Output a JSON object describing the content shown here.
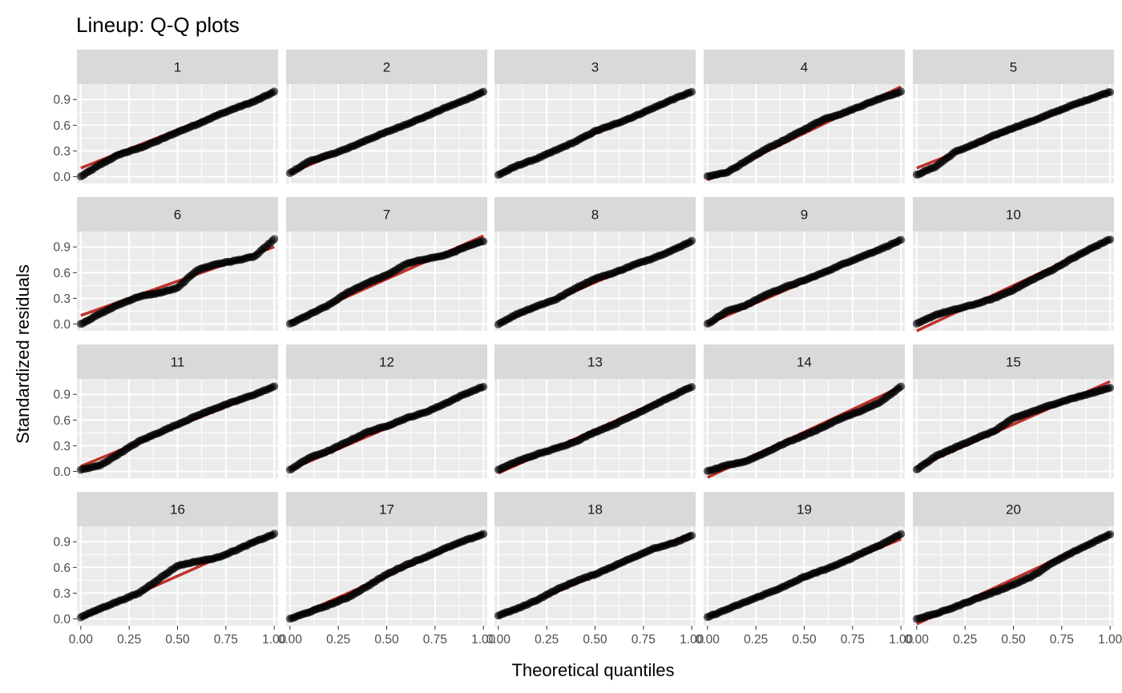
{
  "chart_data": {
    "type": "scatter",
    "title": "Lineup: Q-Q plots",
    "xlabel": "Theoretical quantiles",
    "ylabel": "Standardized residuals",
    "xlim": [
      -0.02,
      1.02
    ],
    "ylim": [
      -0.08,
      1.08
    ],
    "xticks": [
      0.0,
      0.25,
      0.5,
      0.75,
      1.0
    ],
    "xtick_labels": [
      "0.00",
      "0.25",
      "0.50",
      "0.75",
      "1.00"
    ],
    "yticks": [
      0.0,
      0.3,
      0.6,
      0.9
    ],
    "ytick_labels": [
      "0.0",
      "0.3",
      "0.6",
      "0.9"
    ],
    "facet_rows": 4,
    "facet_cols": 5,
    "grid": true,
    "colors": {
      "panel_background": "#ebebeb",
      "strip_background": "#d9d9d9",
      "grid_line": "#ffffff",
      "reference_line": "#c0312b",
      "points": "#000000"
    },
    "points_per_panel": 100,
    "panels": [
      {
        "label": "1",
        "x": [
          0.0,
          0.1,
          0.2,
          0.3,
          0.4,
          0.5,
          0.6,
          0.7,
          0.8,
          0.9,
          1.0
        ],
        "y": [
          0.0,
          0.14,
          0.26,
          0.33,
          0.42,
          0.52,
          0.61,
          0.71,
          0.8,
          0.88,
          0.99
        ],
        "ref": [
          0.1,
          0.99
        ]
      },
      {
        "label": "2",
        "x": [
          0.0,
          0.1,
          0.2,
          0.3,
          0.4,
          0.5,
          0.6,
          0.7,
          0.8,
          0.9,
          1.0
        ],
        "y": [
          0.04,
          0.18,
          0.25,
          0.33,
          0.43,
          0.52,
          0.61,
          0.7,
          0.8,
          0.89,
          0.99
        ],
        "ref": [
          0.04,
          0.99
        ]
      },
      {
        "label": "3",
        "x": [
          0.0,
          0.1,
          0.2,
          0.3,
          0.4,
          0.5,
          0.6,
          0.7,
          0.8,
          0.9,
          1.0
        ],
        "y": [
          0.02,
          0.13,
          0.21,
          0.31,
          0.41,
          0.53,
          0.61,
          0.7,
          0.8,
          0.9,
          0.99
        ],
        "ref": [
          0.02,
          0.99
        ]
      },
      {
        "label": "4",
        "x": [
          0.0,
          0.1,
          0.2,
          0.3,
          0.4,
          0.5,
          0.6,
          0.7,
          0.8,
          0.9,
          1.0
        ],
        "y": [
          0.0,
          0.05,
          0.18,
          0.32,
          0.43,
          0.55,
          0.67,
          0.74,
          0.83,
          0.92,
          0.99
        ],
        "ref": [
          -0.04,
          1.05
        ]
      },
      {
        "label": "5",
        "x": [
          0.0,
          0.1,
          0.2,
          0.3,
          0.4,
          0.5,
          0.6,
          0.7,
          0.8,
          0.9,
          1.0
        ],
        "y": [
          0.02,
          0.12,
          0.29,
          0.38,
          0.48,
          0.57,
          0.65,
          0.74,
          0.83,
          0.91,
          0.99
        ],
        "ref": [
          0.1,
          0.99
        ]
      },
      {
        "label": "6",
        "x": [
          0.0,
          0.1,
          0.2,
          0.3,
          0.4,
          0.5,
          0.6,
          0.7,
          0.8,
          0.9,
          1.0
        ],
        "y": [
          0.0,
          0.12,
          0.23,
          0.32,
          0.36,
          0.42,
          0.63,
          0.7,
          0.74,
          0.79,
          0.99
        ],
        "ref": [
          0.1,
          0.9
        ]
      },
      {
        "label": "7",
        "x": [
          0.0,
          0.1,
          0.2,
          0.3,
          0.4,
          0.5,
          0.6,
          0.7,
          0.8,
          0.9,
          1.0
        ],
        "y": [
          0.0,
          0.11,
          0.22,
          0.37,
          0.48,
          0.57,
          0.7,
          0.76,
          0.8,
          0.89,
          0.97
        ],
        "ref": [
          0.02,
          1.03
        ]
      },
      {
        "label": "8",
        "x": [
          0.0,
          0.1,
          0.2,
          0.3,
          0.4,
          0.5,
          0.6,
          0.7,
          0.8,
          0.9,
          1.0
        ],
        "y": [
          0.0,
          0.12,
          0.21,
          0.29,
          0.42,
          0.53,
          0.6,
          0.69,
          0.77,
          0.86,
          0.97
        ],
        "ref": [
          0.0,
          0.97
        ]
      },
      {
        "label": "9",
        "x": [
          0.0,
          0.1,
          0.2,
          0.3,
          0.4,
          0.5,
          0.6,
          0.7,
          0.8,
          0.9,
          1.0
        ],
        "y": [
          0.0,
          0.15,
          0.22,
          0.34,
          0.43,
          0.51,
          0.6,
          0.7,
          0.79,
          0.88,
          0.98
        ],
        "ref": [
          0.0,
          0.98
        ]
      },
      {
        "label": "10",
        "x": [
          0.0,
          0.1,
          0.2,
          0.3,
          0.4,
          0.5,
          0.6,
          0.7,
          0.8,
          0.9,
          1.0
        ],
        "y": [
          0.0,
          0.11,
          0.17,
          0.23,
          0.3,
          0.4,
          0.52,
          0.63,
          0.76,
          0.88,
          0.99
        ],
        "ref": [
          -0.08,
          0.98
        ]
      },
      {
        "label": "11",
        "x": [
          0.0,
          0.1,
          0.2,
          0.3,
          0.4,
          0.5,
          0.6,
          0.7,
          0.8,
          0.9,
          1.0
        ],
        "y": [
          0.02,
          0.07,
          0.21,
          0.35,
          0.45,
          0.55,
          0.65,
          0.74,
          0.82,
          0.9,
          0.99
        ],
        "ref": [
          0.06,
          0.99
        ]
      },
      {
        "label": "12",
        "x": [
          0.0,
          0.1,
          0.2,
          0.3,
          0.4,
          0.5,
          0.6,
          0.7,
          0.8,
          0.9,
          1.0
        ],
        "y": [
          0.02,
          0.16,
          0.24,
          0.35,
          0.46,
          0.53,
          0.62,
          0.69,
          0.79,
          0.9,
          0.99
        ],
        "ref": [
          0.02,
          0.99
        ]
      },
      {
        "label": "13",
        "x": [
          0.0,
          0.1,
          0.2,
          0.3,
          0.4,
          0.5,
          0.6,
          0.7,
          0.8,
          0.9,
          1.0
        ],
        "y": [
          0.02,
          0.12,
          0.2,
          0.27,
          0.35,
          0.46,
          0.55,
          0.66,
          0.77,
          0.88,
          0.99
        ],
        "ref": [
          -0.02,
          0.99
        ]
      },
      {
        "label": "14",
        "x": [
          0.0,
          0.1,
          0.2,
          0.3,
          0.4,
          0.5,
          0.6,
          0.7,
          0.8,
          0.9,
          1.0
        ],
        "y": [
          0.0,
          0.07,
          0.12,
          0.22,
          0.33,
          0.42,
          0.52,
          0.63,
          0.71,
          0.82,
          0.99
        ],
        "ref": [
          -0.07,
          0.99
        ]
      },
      {
        "label": "15",
        "x": [
          0.0,
          0.1,
          0.2,
          0.3,
          0.4,
          0.5,
          0.6,
          0.7,
          0.8,
          0.9,
          1.0
        ],
        "y": [
          0.02,
          0.18,
          0.28,
          0.38,
          0.47,
          0.62,
          0.7,
          0.78,
          0.85,
          0.91,
          0.98
        ],
        "ref": [
          0.05,
          1.05
        ]
      },
      {
        "label": "16",
        "x": [
          0.0,
          0.1,
          0.2,
          0.3,
          0.4,
          0.5,
          0.6,
          0.7,
          0.8,
          0.9,
          1.0
        ],
        "y": [
          0.02,
          0.12,
          0.21,
          0.3,
          0.46,
          0.62,
          0.67,
          0.71,
          0.8,
          0.9,
          0.99
        ],
        "ref": [
          0.0,
          1.0
        ]
      },
      {
        "label": "17",
        "x": [
          0.0,
          0.1,
          0.2,
          0.3,
          0.4,
          0.5,
          0.6,
          0.7,
          0.8,
          0.9,
          1.0
        ],
        "y": [
          0.0,
          0.08,
          0.16,
          0.25,
          0.38,
          0.52,
          0.63,
          0.72,
          0.82,
          0.91,
          0.99
        ],
        "ref": [
          0.0,
          1.0
        ]
      },
      {
        "label": "18",
        "x": [
          0.0,
          0.1,
          0.2,
          0.3,
          0.4,
          0.5,
          0.6,
          0.7,
          0.8,
          0.9,
          1.0
        ],
        "y": [
          0.04,
          0.12,
          0.22,
          0.34,
          0.44,
          0.52,
          0.62,
          0.72,
          0.82,
          0.88,
          0.97
        ],
        "ref": [
          0.02,
          1.0
        ]
      },
      {
        "label": "19",
        "x": [
          0.0,
          0.1,
          0.2,
          0.3,
          0.4,
          0.5,
          0.6,
          0.7,
          0.8,
          0.9,
          1.0
        ],
        "y": [
          0.02,
          0.11,
          0.2,
          0.29,
          0.38,
          0.49,
          0.57,
          0.66,
          0.77,
          0.87,
          0.99
        ],
        "ref": [
          0.02,
          0.93
        ]
      },
      {
        "label": "20",
        "x": [
          0.0,
          0.1,
          0.2,
          0.3,
          0.4,
          0.5,
          0.6,
          0.7,
          0.8,
          0.9,
          1.0
        ],
        "y": [
          0.0,
          0.06,
          0.14,
          0.23,
          0.31,
          0.4,
          0.5,
          0.65,
          0.77,
          0.88,
          0.99
        ],
        "ref": [
          -0.06,
          0.99
        ]
      }
    ]
  }
}
